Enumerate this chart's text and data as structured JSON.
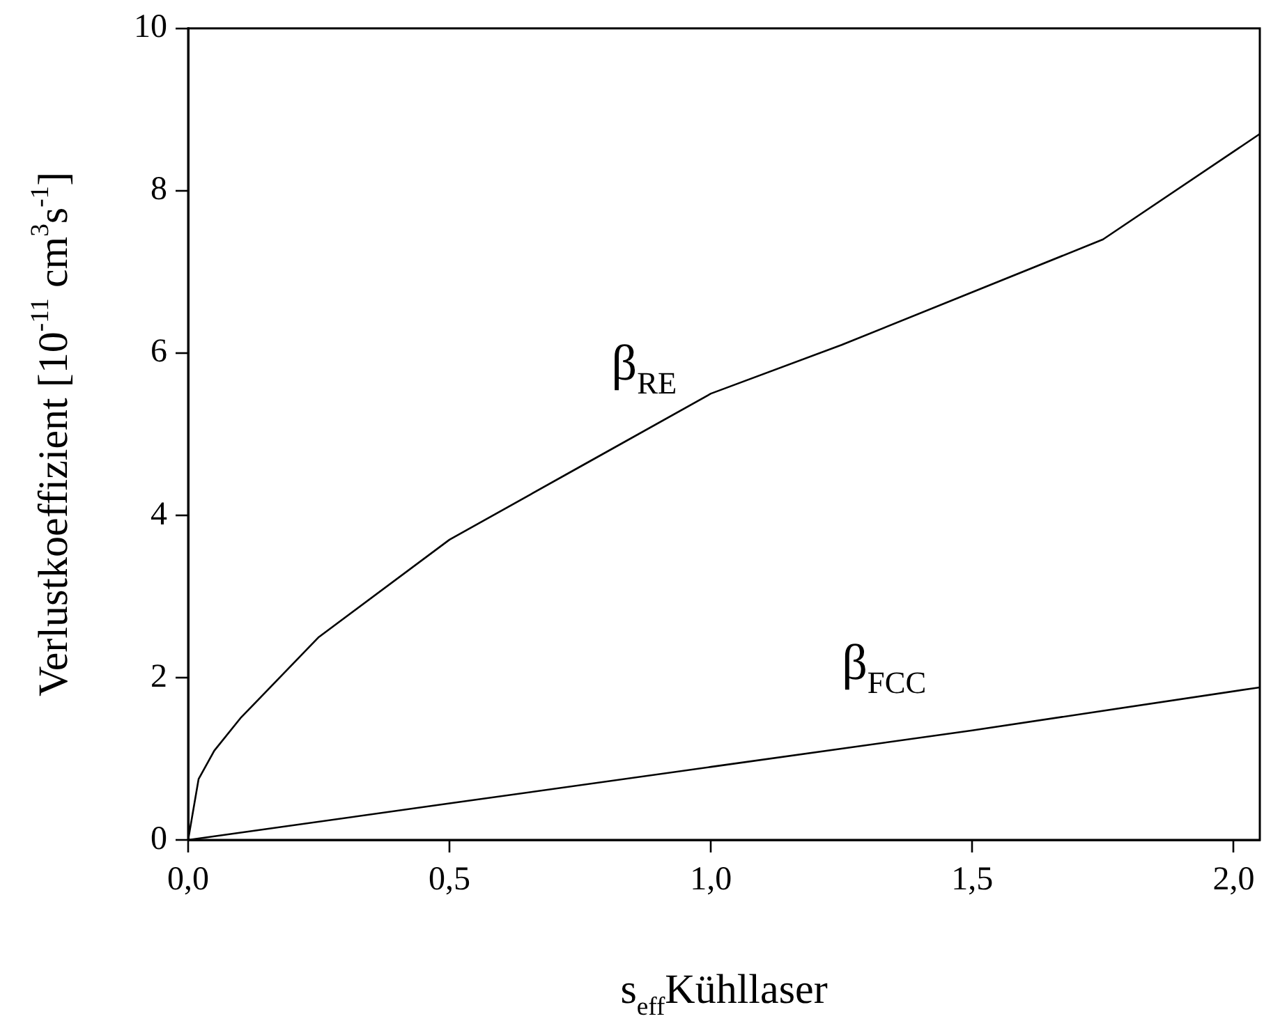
{
  "chart_data": {
    "type": "line",
    "xlabel": "s$_{eff}$Kühllaser",
    "ylabel": "Verlustkoeffizient [10$^{-11}$ cm$^{3}$s$^{-1}$]",
    "xlim": [
      0,
      2.05
    ],
    "xticks": [
      {
        "value": 0,
        "label": "0,0"
      },
      {
        "value": 0.5,
        "label": "0,5"
      },
      {
        "value": 1,
        "label": "1,0"
      },
      {
        "value": 1.5,
        "label": "1,5"
      },
      {
        "value": 2,
        "label": "2,0"
      }
    ],
    "ylim": [
      0,
      10
    ],
    "yticks": [
      0,
      2,
      4,
      6,
      8,
      10
    ],
    "series": [
      {
        "name": "β$_{RE}$",
        "color": "#000000",
        "x": [
          0,
          0.02,
          0.05,
          0.1,
          0.25,
          0.5,
          0.75,
          1.0,
          1.25,
          1.5,
          1.75,
          2.05
        ],
        "values": [
          0,
          0.75,
          1.1,
          1.5,
          2.5,
          3.7,
          4.6,
          5.5,
          6.1,
          6.75,
          7.4,
          8.7
        ]
      },
      {
        "name": "β$_{FCC}$",
        "color": "#000000",
        "x": [
          0,
          0.5,
          1.0,
          1.5,
          2.05
        ],
        "values": [
          0,
          0.45,
          0.9,
          1.35,
          1.88
        ]
      }
    ],
    "grid": false,
    "legend": false,
    "marker": "none",
    "line_style": "solid"
  }
}
